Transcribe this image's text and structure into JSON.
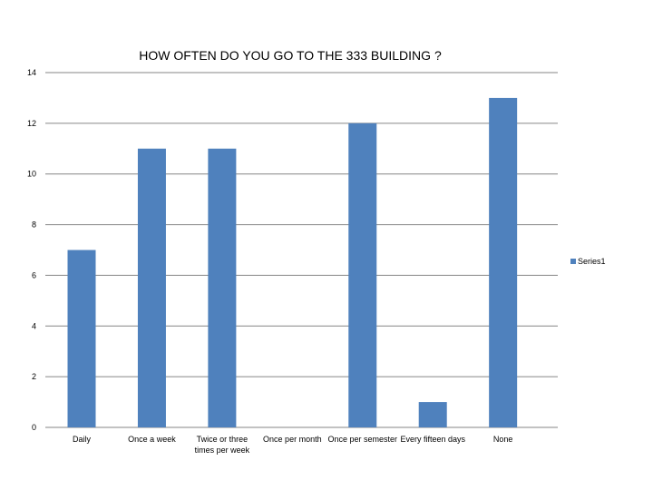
{
  "chart_data": {
    "type": "bar",
    "title": "HOW OFTEN DO YOU GO TO THE 333 BUILDING ?",
    "xlabel": "",
    "ylabel": "",
    "categories": [
      "Daily",
      "Once a week",
      "Twice or three times per week",
      "Once per month",
      "Once per semester",
      "Every fifteen days",
      "None"
    ],
    "series": [
      {
        "name": "Series1",
        "values": [
          7,
          11,
          11,
          0,
          12,
          1,
          13
        ]
      }
    ],
    "ylim": [
      0,
      14
    ],
    "yticks": [
      "0",
      "2",
      "4",
      "6",
      "8",
      "10",
      "12",
      "14"
    ],
    "grid": true,
    "legend_position": "right",
    "colors": {
      "bar": "#4f81bd",
      "grid": "#868686"
    }
  }
}
